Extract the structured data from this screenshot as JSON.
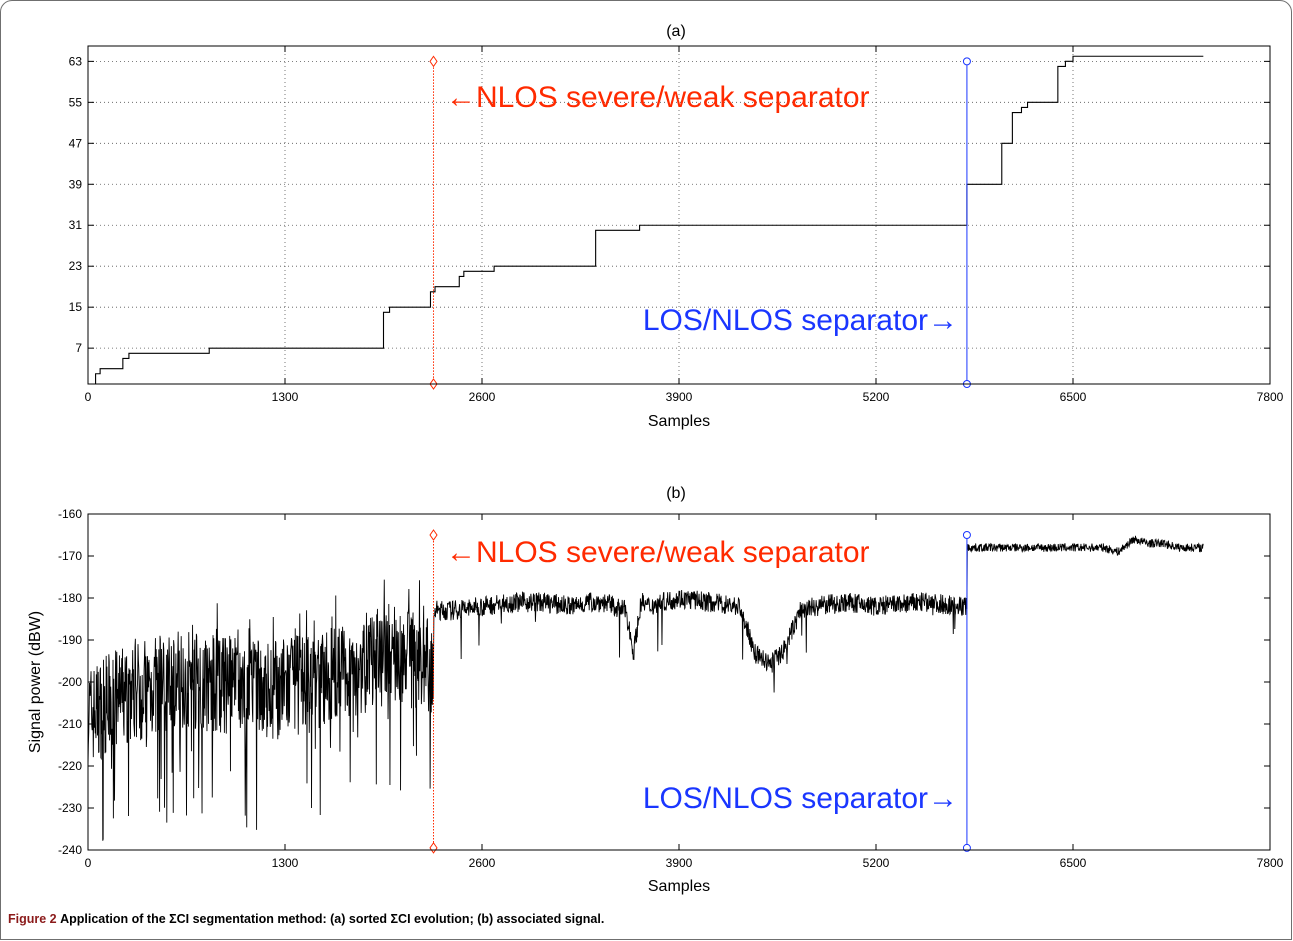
{
  "caption": {
    "label": "Figure 2",
    "text": "Application of the ΣCI segmentation method: (a) sorted ΣCI evolution; (b) associated signal."
  },
  "colors": {
    "separator_nlos": "#ff2a00",
    "separator_los": "#1a36ff",
    "trace": "#000000",
    "grid": "#555555"
  },
  "chart_data": [
    {
      "type": "line",
      "title": "(a)",
      "xlabel": "Samples",
      "ylabel": "",
      "xlim": [
        0,
        7800
      ],
      "ylim": [
        0,
        66
      ],
      "xticks": [
        0,
        1300,
        2600,
        3900,
        5200,
        6500,
        7800
      ],
      "yticks": [
        7,
        15,
        23,
        31,
        39,
        47,
        55,
        63
      ],
      "grid": true,
      "series": [
        {
          "x": [
            0,
            50,
            50,
            80,
            80,
            230,
            230,
            270,
            270,
            800,
            800,
            1950,
            1950,
            1990,
            1990,
            2070,
            2070,
            2260,
            2260,
            2290,
            2290,
            2350,
            2350,
            2450,
            2450,
            2480,
            2480,
            2680,
            2680,
            2900,
            2900,
            3350,
            3350,
            3640,
            3640,
            5800,
            5800,
            6030,
            6030,
            6100,
            6100,
            6160,
            6160,
            6200,
            6200,
            6400,
            6400,
            6450,
            6450,
            6500,
            6500,
            7360
          ],
          "y": [
            0,
            0,
            2,
            2,
            3,
            3,
            5,
            5,
            6,
            6,
            7,
            7,
            14,
            14,
            15,
            15,
            15,
            15,
            18,
            18,
            19,
            19,
            19,
            19,
            21,
            21,
            22,
            22,
            23,
            23,
            23,
            23,
            30,
            30,
            31,
            31,
            39,
            39,
            47,
            47,
            53,
            53,
            54,
            54,
            55,
            55,
            62,
            62,
            63,
            63,
            64,
            64
          ]
        }
      ],
      "separators": [
        {
          "x": 2280,
          "label": "←NLOS severe/weak separator",
          "color": "#ff2a00",
          "marker": "diamond",
          "style": "dotted"
        },
        {
          "x": 5800,
          "label": "LOS/NLOS separator→",
          "color": "#1a36ff",
          "marker": "circle",
          "style": "solid"
        }
      ]
    },
    {
      "type": "line",
      "title": "(b)",
      "xlabel": "Samples",
      "ylabel": "Signal power (dBW)",
      "xlim": [
        0,
        7800
      ],
      "ylim": [
        -240,
        -160
      ],
      "xticks": [
        0,
        1300,
        2600,
        3900,
        5200,
        6500,
        7800
      ],
      "yticks": [
        -240,
        -230,
        -220,
        -210,
        -200,
        -190,
        -180,
        -170,
        -160
      ],
      "grid": false,
      "series": [
        {
          "x": [
            0,
            250,
            600,
            900,
            1200,
            1500,
            1800,
            2000,
            2200,
            2280,
            2281,
            2400,
            2600,
            2800,
            3000,
            3200,
            3300,
            3400,
            3550,
            3600,
            3650,
            3700,
            3900,
            4100,
            4300,
            4400,
            4500,
            4600,
            4700,
            4800,
            5000,
            5200,
            5500,
            5800,
            5801,
            6000,
            6300,
            6500,
            6700,
            6800,
            6900,
            7000,
            7100,
            7200,
            7360
          ],
          "y": [
            -208,
            -203,
            -199,
            -201,
            -202,
            -200,
            -196,
            -193,
            -195,
            -197,
            -183,
            -183,
            -182,
            -181,
            -181,
            -182,
            -181,
            -181,
            -183,
            -193,
            -181,
            -182,
            -180,
            -181,
            -182,
            -193,
            -196,
            -192,
            -183,
            -182,
            -181,
            -182,
            -181,
            -182,
            -168,
            -168,
            -168,
            -168,
            -168,
            -169,
            -166,
            -167,
            -167,
            -168,
            -168
          ]
        }
      ],
      "separators": [
        {
          "x": 2280,
          "label": "←NLOS severe/weak separator",
          "color": "#ff2a00",
          "marker": "diamond",
          "style": "dotted"
        },
        {
          "x": 5800,
          "label": "LOS/NLOS separator→",
          "color": "#1a36ff",
          "marker": "circle",
          "style": "solid"
        }
      ]
    }
  ]
}
